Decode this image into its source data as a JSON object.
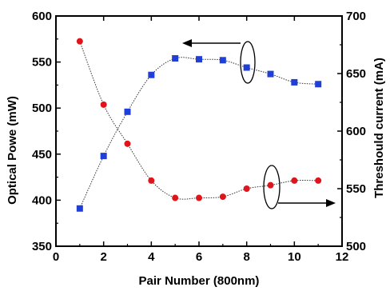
{
  "chart_data": {
    "type": "scatter",
    "xlabel": "Pair Number (800nm)",
    "ylabel_left": "Optical Powe (mW)",
    "ylabel_right": "Threshould current (mA)",
    "xlim": [
      0,
      12
    ],
    "ylim_left": [
      350,
      600
    ],
    "ylim_right": [
      500,
      700
    ],
    "x_ticks": [
      0,
      2,
      4,
      6,
      8,
      10,
      12
    ],
    "y_left_ticks": [
      350,
      400,
      450,
      500,
      550,
      600
    ],
    "y_right_ticks": [
      500,
      550,
      600,
      650,
      700
    ],
    "grid": false,
    "series": [
      {
        "axis": "left",
        "marker": "square",
        "color": "#1f3fd6",
        "x": [
          1,
          2,
          3,
          4,
          5,
          6,
          7,
          8,
          9,
          10,
          11
        ],
        "values": [
          391,
          448,
          496,
          536,
          554,
          553,
          552,
          544,
          537,
          528,
          526
        ]
      },
      {
        "axis": "right",
        "marker": "circle",
        "color": "#e0141b",
        "x": [
          1,
          2,
          3,
          4,
          5,
          6,
          7,
          8,
          9,
          10,
          11
        ],
        "values": [
          678,
          623,
          589,
          557,
          542,
          542,
          543,
          550,
          553,
          557,
          557
        ]
      }
    ]
  }
}
